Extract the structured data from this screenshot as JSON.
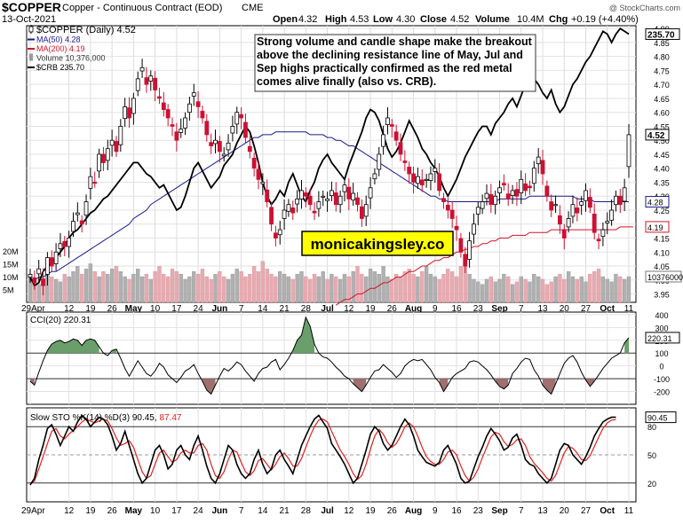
{
  "header": {
    "symbol": "$COPPER",
    "description": "Copper - Continuous Contract (EOD)",
    "exchange": "CME",
    "date": "13-Oct-2021",
    "watermark": "@ StockCharts.com",
    "ohlc": {
      "open_label": "Open",
      "open": "4.32",
      "high_label": "High",
      "high": "4.53",
      "low_label": "Low",
      "low": "4.30",
      "close_label": "Close",
      "close": "4.52",
      "volume_label": "Volume",
      "volume": "10.4M",
      "chg_label": "Chg",
      "chg": "+0.19 (+4.40%)"
    }
  },
  "legend": [
    {
      "text": "$COPPER (Daily) 4.52",
      "color": "#000000",
      "marker": "candle"
    },
    {
      "text": "MA(50) 4.28",
      "color": "#1a1a8c",
      "marker": "line"
    },
    {
      "text": "MA(200) 4.19",
      "color": "#d0142c",
      "marker": "line"
    },
    {
      "text": "Volume 10,376,000",
      "color": "#9a9a9a",
      "marker": "bar"
    },
    {
      "text": "$CRB 235.70",
      "color": "#000000",
      "marker": "line"
    }
  ],
  "annotation": "Strong volume and candle shape make the breakout above the declining resistance line of May, Jul and Sep highs practically confirmed as the red metal comes alive finally (also vs. CRB).",
  "brand": "monicakingsley.co",
  "colors": {
    "up": "#ffffff",
    "down": "#cc1133",
    "ma50": "#1a1a8c",
    "ma200": "#d0142c",
    "crb": "#000000",
    "volume_up": "#b0b0b0",
    "volume_down": "#e8aab2",
    "cci_fill_pos": "#6a9e6a",
    "cci_fill_neg": "#a07070",
    "stoch_d": "#e02020",
    "brand_bg": "#ffff00"
  },
  "chart_data": [
    {
      "type": "candlestick",
      "title": "$COPPER (Daily)",
      "x_tick_labels": [
        "29Apr",
        "12",
        "19",
        "26",
        "May",
        "10",
        "17",
        "24",
        "Jun",
        "7",
        "14",
        "21",
        "28",
        "Jul",
        "12",
        "19",
        "26",
        "Aug",
        "9",
        "16",
        "23",
        "Sep",
        "7",
        "13",
        "20",
        "27",
        "Oct",
        "11"
      ],
      "y_ticks": [
        3.95,
        4.0,
        4.05,
        4.1,
        4.15,
        4.2,
        4.25,
        4.3,
        4.35,
        4.4,
        4.45,
        4.5,
        4.55,
        4.6,
        4.65,
        4.7,
        4.75,
        4.8,
        4.85,
        4.9
      ],
      "ylim": [
        3.92,
        4.91
      ],
      "last_labels": [
        {
          "text": "235.70",
          "series": "$CRB"
        },
        {
          "text": "4.52",
          "series": "$COPPER"
        },
        {
          "text": "4.28",
          "series": "MA(50)"
        },
        {
          "text": "4.19",
          "series": "MA(200)"
        },
        {
          "text": "10376000",
          "series": "Volume"
        }
      ],
      "volume_axis_labels": [
        "20M",
        "15M",
        "10M",
        "5M"
      ],
      "grid": true,
      "close": [
        4.02,
        3.99,
        4.04,
        3.98,
        4.08,
        4.05,
        4.1,
        4.13,
        4.12,
        4.15,
        4.21,
        4.24,
        4.2,
        4.28,
        4.37,
        4.35,
        4.45,
        4.42,
        4.47,
        4.5,
        4.46,
        4.55,
        4.62,
        4.58,
        4.65,
        4.72,
        4.76,
        4.7,
        4.73,
        4.68,
        4.65,
        4.61,
        4.58,
        4.55,
        4.5,
        4.54,
        4.58,
        4.63,
        4.67,
        4.62,
        4.58,
        4.52,
        4.48,
        4.5,
        4.46,
        4.45,
        4.49,
        4.55,
        4.6,
        4.58,
        4.51,
        4.46,
        4.4,
        4.36,
        4.35,
        4.28,
        4.2,
        4.15,
        4.18,
        4.25,
        4.27,
        4.24,
        4.29,
        4.32,
        4.3,
        4.27,
        4.24,
        4.28,
        4.3,
        4.29,
        4.32,
        4.27,
        4.3,
        4.34,
        4.29,
        4.31,
        4.27,
        4.22,
        4.27,
        4.33,
        4.38,
        4.45,
        4.52,
        4.58,
        4.55,
        4.5,
        4.45,
        4.42,
        4.38,
        4.35,
        4.37,
        4.34,
        4.36,
        4.38,
        4.4,
        4.32,
        4.28,
        4.25,
        4.22,
        4.18,
        4.1,
        4.05,
        4.14,
        4.2,
        4.26,
        4.28,
        4.31,
        4.27,
        4.3,
        4.33,
        4.34,
        4.29,
        4.32,
        4.3,
        4.36,
        4.32,
        4.33,
        4.4,
        4.44,
        4.38,
        4.3,
        4.25,
        4.27,
        4.2,
        4.15,
        4.22,
        4.27,
        4.24,
        4.28,
        4.32,
        4.26,
        4.17,
        4.14,
        4.18,
        4.21,
        4.25,
        4.3,
        4.27,
        4.33,
        4.52
      ],
      "ma50": [
        4.0,
        4.0,
        4.01,
        4.01,
        4.02,
        4.03,
        4.03,
        4.04,
        4.05,
        4.06,
        4.07,
        4.08,
        4.09,
        4.1,
        4.11,
        4.12,
        4.13,
        4.14,
        4.15,
        4.16,
        4.17,
        4.18,
        4.19,
        4.2,
        4.22,
        4.23,
        4.24,
        4.25,
        4.27,
        4.28,
        4.29,
        4.3,
        4.31,
        4.32,
        4.33,
        4.34,
        4.35,
        4.36,
        4.37,
        4.38,
        4.39,
        4.4,
        4.41,
        4.42,
        4.43,
        4.44,
        4.45,
        4.46,
        4.47,
        4.48,
        4.49,
        4.5,
        4.51,
        4.51,
        4.52,
        4.52,
        4.52,
        4.53,
        4.53,
        4.53,
        4.53,
        4.53,
        4.53,
        4.53,
        4.53,
        4.52,
        4.52,
        4.52,
        4.52,
        4.51,
        4.51,
        4.5,
        4.5,
        4.49,
        4.48,
        4.48,
        4.47,
        4.46,
        4.45,
        4.44,
        4.43,
        4.42,
        4.41,
        4.4,
        4.39,
        4.38,
        4.37,
        4.36,
        4.35,
        4.34,
        4.33,
        4.32,
        4.31,
        4.3,
        4.3,
        4.29,
        4.29,
        4.28,
        4.28,
        4.28,
        4.28,
        4.28,
        4.28,
        4.28,
        4.28,
        4.28,
        4.28,
        4.28,
        4.28,
        4.29,
        4.29,
        4.29,
        4.29,
        4.29,
        4.29,
        4.29,
        4.3,
        4.3,
        4.3,
        4.3,
        4.3,
        4.3,
        4.3,
        4.3,
        4.3,
        4.3,
        4.3,
        4.29,
        4.29,
        4.29,
        4.29,
        4.28,
        4.28,
        4.28,
        4.28,
        4.28,
        4.28,
        4.28,
        4.28,
        4.28
      ],
      "ma200_start_index": 71,
      "ma200": [
        3.91,
        3.92,
        3.93,
        3.93,
        3.94,
        3.95,
        3.95,
        3.96,
        3.97,
        3.97,
        3.98,
        3.99,
        3.99,
        4.0,
        4.01,
        4.01,
        4.02,
        4.03,
        4.03,
        4.04,
        4.05,
        4.05,
        4.06,
        4.07,
        4.07,
        4.08,
        4.08,
        4.09,
        4.1,
        4.1,
        4.11,
        4.11,
        4.12,
        4.12,
        4.13,
        4.13,
        4.14,
        4.14,
        4.15,
        4.15,
        4.15,
        4.16,
        4.16,
        4.16,
        4.16,
        4.17,
        4.17,
        4.17,
        4.17,
        4.17,
        4.18,
        4.18,
        4.18,
        4.18,
        4.18,
        4.18,
        4.18,
        4.18,
        4.18,
        4.18,
        4.18,
        4.18,
        4.18,
        4.18,
        4.18,
        4.18,
        4.19,
        4.19,
        4.19,
        4.19
      ],
      "crb": [
        4.01,
        3.98,
        3.99,
        4.03,
        4.05,
        4.06,
        4.08,
        4.1,
        4.12,
        4.15,
        4.17,
        4.18,
        4.2,
        4.22,
        4.24,
        4.25,
        4.27,
        4.29,
        4.3,
        4.32,
        4.34,
        4.36,
        4.38,
        4.4,
        4.42,
        4.42,
        4.4,
        4.38,
        4.37,
        4.35,
        4.33,
        4.34,
        4.31,
        4.28,
        4.25,
        4.26,
        4.3,
        4.35,
        4.4,
        4.42,
        4.39,
        4.36,
        4.33,
        4.35,
        4.37,
        4.41,
        4.43,
        4.45,
        4.49,
        4.52,
        4.55,
        4.53,
        4.48,
        4.42,
        4.35,
        4.3,
        4.27,
        4.29,
        4.32,
        4.3,
        4.35,
        4.38,
        4.34,
        4.3,
        4.28,
        4.32,
        4.35,
        4.4,
        4.43,
        4.45,
        4.42,
        4.4,
        4.38,
        4.36,
        4.41,
        4.45,
        4.49,
        4.53,
        4.58,
        4.61,
        4.6,
        4.57,
        4.52,
        4.47,
        4.44,
        4.46,
        4.49,
        4.53,
        4.57,
        4.54,
        4.51,
        4.47,
        4.45,
        4.42,
        4.4,
        4.37,
        4.33,
        4.3,
        4.33,
        4.36,
        4.4,
        4.44,
        4.47,
        4.5,
        4.53,
        4.55,
        4.55,
        4.52,
        4.56,
        4.58,
        4.6,
        4.63,
        4.65,
        4.62,
        4.66,
        4.7,
        4.68,
        4.72,
        4.7,
        4.67,
        4.65,
        4.68,
        4.63,
        4.6,
        4.62,
        4.66,
        4.7,
        4.72,
        4.75,
        4.78,
        4.8,
        4.83,
        4.86,
        4.89,
        4.88,
        4.85,
        4.88,
        4.9,
        4.89,
        4.88
      ],
      "volume_millions": [
        11,
        9,
        7,
        8,
        12,
        10,
        9,
        8,
        11,
        10,
        12,
        14,
        11,
        13,
        15,
        12,
        10,
        12,
        11,
        13,
        14,
        12,
        10,
        9,
        11,
        13,
        10,
        11,
        9,
        12,
        14,
        11,
        10,
        13,
        12,
        11,
        9,
        10,
        12,
        11,
        13,
        10,
        9,
        11,
        12,
        10,
        9,
        11,
        13,
        12,
        10,
        11,
        14,
        12,
        16,
        13,
        11,
        10,
        12,
        11,
        10,
        9,
        11,
        12,
        10,
        9,
        11,
        10,
        12,
        9,
        11,
        10,
        9,
        11,
        10,
        12,
        14,
        11,
        10,
        13,
        12,
        11,
        14,
        10,
        9,
        11,
        10,
        12,
        13,
        11,
        10,
        12,
        14,
        11,
        10,
        9,
        11,
        13,
        12,
        10,
        14,
        16,
        11,
        9,
        8,
        7,
        9,
        10,
        8,
        9,
        11,
        10,
        7,
        8,
        10,
        9,
        8,
        11,
        10,
        9,
        7,
        8,
        10,
        11,
        9,
        12,
        10,
        9,
        10,
        8,
        11,
        12,
        13,
        10,
        9,
        8,
        11,
        10,
        9,
        10
      ]
    },
    {
      "type": "line",
      "title": "CCI(20)",
      "series": [
        {
          "name": "CCI(20)",
          "values": [
            -120,
            -150,
            -50,
            40,
            120,
            170,
            190,
            200,
            180,
            190,
            210,
            200,
            160,
            200,
            210,
            200,
            150,
            100,
            80,
            120,
            130,
            60,
            -20,
            -80,
            -20,
            40,
            -10,
            -60,
            -80,
            -40,
            20,
            -10,
            -70,
            -100,
            -130,
            -90,
            -40,
            -20,
            10,
            -60,
            -120,
            -190,
            -220,
            -150,
            -80,
            -20,
            -40,
            -10,
            30,
            10,
            -40,
            -80,
            -120,
            -60,
            -20,
            -10,
            30,
            50,
            -30,
            10,
            60,
            120,
            200,
            240,
            380,
            310,
            170,
            100,
            70,
            60,
            30,
            -10,
            -40,
            -80,
            -100,
            -140,
            -170,
            -200,
            -150,
            -90,
            -40,
            -30,
            10,
            -20,
            -50,
            -90,
            -60,
            0,
            30,
            50,
            40,
            50,
            10,
            -30,
            -90,
            -130,
            -200,
            -150,
            -90,
            -60,
            -40,
            -20,
            30,
            40,
            30,
            0,
            -30,
            -70,
            -120,
            -160,
            -180,
            -150,
            -60,
            -20,
            30,
            60,
            50,
            -30,
            -80,
            -150,
            -190,
            -220,
            -140,
            -60,
            20,
            60,
            80,
            30,
            -50,
            -110,
            -160,
            -120,
            -70,
            -20,
            20,
            60,
            80,
            100,
            180,
            220
          ]
        }
      ],
      "y_ticks": [
        -300,
        -200,
        -100,
        0,
        100,
        200,
        300,
        400
      ],
      "ylim": [
        -300,
        420
      ],
      "last_label": "220.31",
      "grid": true
    },
    {
      "type": "line",
      "title": "Slow STO %K(14) %D(3) 90.45, 87.47",
      "series": [
        {
          "name": "%K(14)",
          "values": [
            18,
            25,
            45,
            60,
            78,
            82,
            72,
            60,
            70,
            80,
            75,
            85,
            92,
            88,
            80,
            85,
            90,
            88,
            82,
            70,
            55,
            62,
            75,
            60,
            45,
            30,
            20,
            25,
            40,
            55,
            60,
            50,
            35,
            40,
            55,
            60,
            50,
            45,
            60,
            70,
            55,
            38,
            25,
            20,
            30,
            45,
            60,
            55,
            40,
            30,
            25,
            30,
            45,
            55,
            40,
            30,
            35,
            50,
            55,
            45,
            38,
            30,
            45,
            60,
            70,
            80,
            88,
            92,
            85,
            78,
            62,
            55,
            48,
            40,
            30,
            20,
            25,
            40,
            55,
            72,
            80,
            75,
            62,
            55,
            60,
            70,
            80,
            88,
            82,
            70,
            55,
            48,
            42,
            40,
            38,
            42,
            55,
            60,
            50,
            40,
            25,
            20,
            22,
            35,
            48,
            58,
            70,
            78,
            72,
            65,
            55,
            58,
            68,
            72,
            60,
            45,
            40,
            38,
            30,
            25,
            20,
            25,
            40,
            55,
            62,
            60,
            50,
            45,
            40,
            48,
            58,
            70,
            78,
            85,
            88,
            90,
            90
          ]
        },
        {
          "name": "%D(3)",
          "values": [
            20,
            22,
            35,
            48,
            62,
            75,
            78,
            70,
            67,
            72,
            76,
            80,
            85,
            88,
            86,
            84,
            86,
            88,
            86,
            78,
            68,
            60,
            62,
            65,
            58,
            45,
            32,
            25,
            28,
            40,
            52,
            55,
            48,
            42,
            45,
            52,
            55,
            52,
            52,
            60,
            62,
            55,
            40,
            28,
            25,
            32,
            45,
            55,
            53,
            42,
            32,
            28,
            33,
            44,
            46,
            40,
            34,
            40,
            48,
            52,
            46,
            38,
            38,
            46,
            58,
            70,
            80,
            87,
            88,
            85,
            75,
            65,
            55,
            48,
            40,
            30,
            24,
            28,
            40,
            56,
            70,
            77,
            72,
            63,
            58,
            62,
            70,
            80,
            84,
            80,
            70,
            58,
            48,
            43,
            40,
            40,
            45,
            53,
            55,
            50,
            38,
            28,
            22,
            26,
            35,
            47,
            58,
            69,
            74,
            72,
            64,
            59,
            61,
            66,
            67,
            60,
            48,
            41,
            36,
            31,
            25,
            22,
            28,
            40,
            52,
            59,
            57,
            52,
            45,
            44,
            49,
            59,
            69,
            78,
            84,
            87,
            87.47
          ]
        }
      ],
      "y_ticks": [
        20,
        50,
        80
      ],
      "ylim": [
        0,
        100
      ],
      "last_label": "90.45",
      "grid": true
    }
  ]
}
